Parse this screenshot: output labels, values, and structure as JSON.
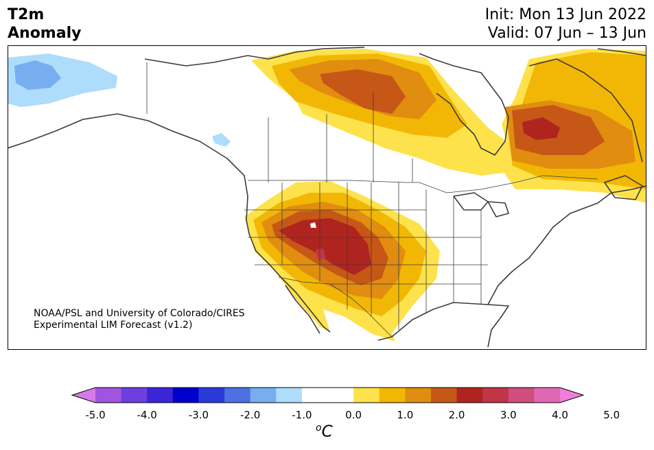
{
  "title": {
    "variable": "T2m",
    "subtitle": "Anomaly",
    "init": "Init: Mon 13 Jun 2022",
    "valid": "Valid: 07 Jun – 13 Jun"
  },
  "credit": {
    "line1": "NOAA/PSL and University of Colorado/CIRES",
    "line2": "Experimental LIM Forecast (v1.2)"
  },
  "colorbar": {
    "colors": [
      "#d77ae9",
      "#a055e0",
      "#6d3fde",
      "#3b25d6",
      "#0000cc",
      "#2a3ad9",
      "#4e70e3",
      "#76aef0",
      "#aedcfb",
      "#ffffff",
      "#ffffff",
      "#fde24b",
      "#f2b705",
      "#e08d10",
      "#c65717",
      "#b02420",
      "#c03647",
      "#d04e7d",
      "#df68b5",
      "#ef7ddc"
    ],
    "labels": [
      "-5.0",
      "-4.0",
      "-3.0",
      "-2.0",
      "-1.0",
      "0.0",
      "1.0",
      "2.0",
      "3.0",
      "4.0",
      "5.0"
    ],
    "unit_letter": "C",
    "unit_sup": "o"
  },
  "map_colors": {
    "ocean": "#ffffff",
    "land": "#ffffff",
    "coast": "#3a3a3a",
    "border": "#3a3a3a",
    "anom_1": "#fde24b",
    "anom_15": "#f2b705",
    "anom_2": "#e08d10",
    "anom_25": "#c65717",
    "anom_3": "#b02420",
    "anom_35": "#c03647",
    "cold_1": "#aedcfb",
    "cold_15": "#76aef0"
  }
}
